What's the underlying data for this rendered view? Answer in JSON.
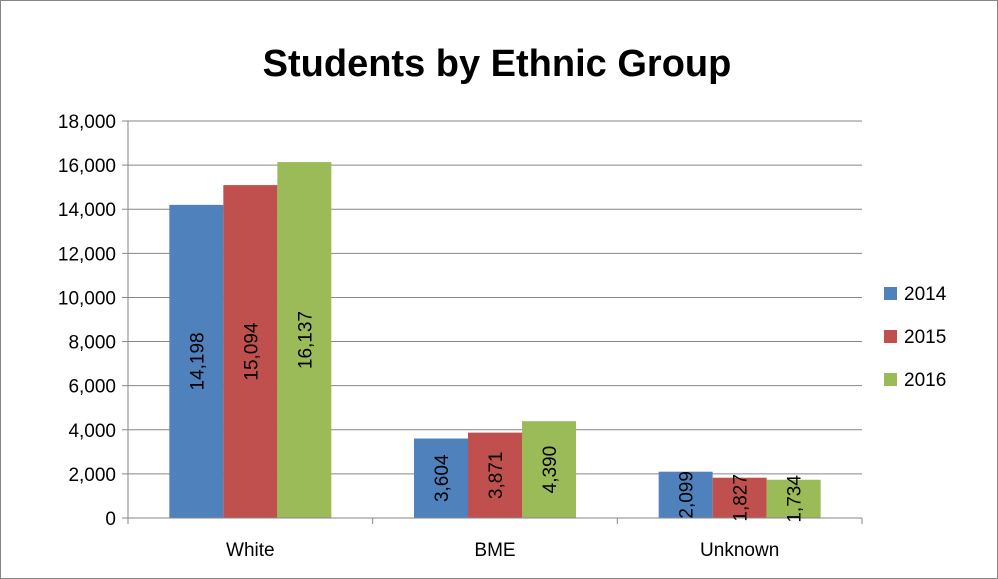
{
  "chart_data": {
    "type": "bar",
    "title": "Students by Ethnic Group",
    "categories": [
      "White",
      "BME",
      "Unknown"
    ],
    "series": [
      {
        "name": "2014",
        "color": "#4f81bd",
        "values": [
          14198,
          3604,
          2099
        ],
        "labels": [
          "14,198",
          "3,604",
          "2,099"
        ]
      },
      {
        "name": "2015",
        "color": "#c0504d",
        "values": [
          15094,
          3871,
          1827
        ],
        "labels": [
          "15,094",
          "3,871",
          "1,827"
        ]
      },
      {
        "name": "2016",
        "color": "#9bbb59",
        "values": [
          16137,
          4390,
          1734
        ],
        "labels": [
          "16,137",
          "4,390",
          "1,734"
        ]
      }
    ],
    "ylim": [
      0,
      18000
    ],
    "yticks": [
      0,
      2000,
      4000,
      6000,
      8000,
      10000,
      12000,
      14000,
      16000,
      18000
    ],
    "ytick_labels": [
      "0",
      "2,000",
      "4,000",
      "6,000",
      "8,000",
      "10,000",
      "12,000",
      "14,000",
      "16,000",
      "18,000"
    ],
    "grid": true,
    "legend_position": "right",
    "xlabel": "",
    "ylabel": ""
  }
}
